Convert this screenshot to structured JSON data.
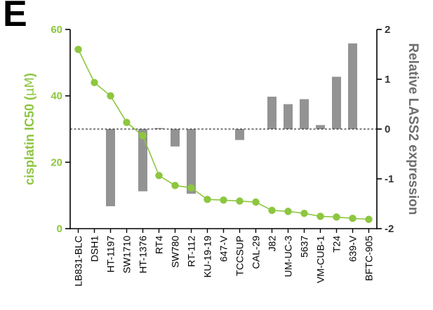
{
  "panel_label": "E",
  "chart_data": {
    "type": "bar+line",
    "categories": [
      "LB831-BLC",
      "DSH1",
      "HT-1197",
      "SW1710",
      "HT-1376",
      "RT4",
      "SW780",
      "RT-112",
      "KU-19-19",
      "647-V",
      "TCCSUP",
      "CAL-29",
      "J82",
      "UM-UC-3",
      "5637",
      "VM-CUB-1",
      "T24",
      "639-V",
      "BFTC-905"
    ],
    "series": [
      {
        "name": "cisplatin IC50 (μM)",
        "axis": "left",
        "type": "line",
        "color": "#8dc63f",
        "values": [
          54,
          44,
          40,
          32,
          28,
          16,
          13,
          12.3,
          8.8,
          8.6,
          8.3,
          8.0,
          5.5,
          5.2,
          4.6,
          3.7,
          3.5,
          3.1,
          2.8
        ]
      },
      {
        "name": "Relative LASS2 expression",
        "axis": "right",
        "type": "bar",
        "color": "#939393",
        "values": [
          0,
          0,
          -1.55,
          0,
          -1.25,
          0.02,
          -0.35,
          -1.3,
          0,
          0,
          -0.22,
          0,
          0.65,
          0.5,
          0.6,
          0.08,
          1.05,
          1.72,
          0
        ]
      }
    ],
    "y_left": {
      "label": "cisplatin IC50 (",
      "label_mu": "μM",
      "label_end": ")",
      "range": [
        0,
        60
      ],
      "ticks": [
        "0",
        "20",
        "40",
        "60"
      ],
      "color": "#8dc63f"
    },
    "y_right": {
      "label": "Relative LASS2 expression",
      "range": [
        -2,
        2
      ],
      "ticks": [
        "-2",
        "-1",
        "0",
        "1",
        "2"
      ],
      "color": "#6e6e6e"
    },
    "reference_line": {
      "value": 0,
      "axis": "right",
      "style": "dashed"
    },
    "grid": false,
    "legend": "none"
  }
}
